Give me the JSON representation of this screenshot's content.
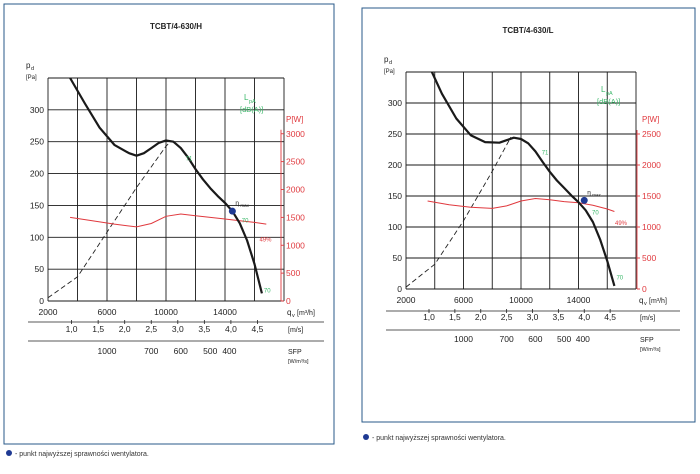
{
  "footnote": "- punkt najwyższej sprawności wentylatora.",
  "colors": {
    "curve": "#1a1a1a",
    "power": "#e0393e",
    "green": "#3db86b",
    "marker": "#1f3a93",
    "grid": "#1a1a1a",
    "frame": "#2a5a88"
  },
  "chart_data": [
    {
      "type": "line",
      "title": "TCBT/4-630/H",
      "ylabel_main": "p",
      "ylabel_sub": "d",
      "ylabel_unit": "[Pa]",
      "ylim": [
        0,
        350
      ],
      "yticks": [
        0,
        50,
        100,
        150,
        200,
        250,
        300
      ],
      "xlim": [
        2000,
        18000
      ],
      "xticks": [
        2000,
        6000,
        10000,
        14000
      ],
      "xlabel_main": "q",
      "xlabel_sub": "v",
      "xlabel_unit": "[m³/h]",
      "y2label": "P[W]",
      "y2lim": [
        0,
        4000
      ],
      "y2ticks": [
        0,
        500,
        1000,
        1500,
        2000,
        2500,
        3000
      ],
      "lpa_label": "L",
      "lpa_sub": "pA",
      "lpa_unit": "[dB(A)]",
      "eta_label": "η",
      "eta_sub": "max",
      "pressure_curve": {
        "x": [
          3500,
          4500,
          5500,
          6500,
          7500,
          8000,
          8500,
          9000,
          9500,
          10000,
          10500,
          11000,
          11500,
          12000,
          12500,
          13000,
          13500,
          14000,
          14500,
          15000,
          15500,
          16000,
          16500
        ],
        "y": [
          350,
          310,
          272,
          245,
          232,
          228,
          232,
          240,
          248,
          252,
          250,
          240,
          225,
          207,
          191,
          177,
          165,
          154,
          141,
          122,
          95,
          58,
          12
        ]
      },
      "power_curve": {
        "x": [
          3500,
          5000,
          6500,
          8000,
          9000,
          10000,
          11000,
          12000,
          13000,
          14000,
          15000,
          16000,
          16800
        ],
        "y": [
          1500,
          1440,
          1380,
          1330,
          1390,
          1520,
          1560,
          1530,
          1500,
          1470,
          1440,
          1410,
          1380
        ]
      },
      "system_curve": {
        "x": [
          2000,
          4000,
          6000,
          8000,
          10000,
          10300
        ],
        "y": [
          5,
          38,
          108,
          178,
          243,
          250
        ]
      },
      "markers": [
        {
          "label": "71",
          "x": 11200,
          "y": 225,
          "series": "LpA"
        },
        {
          "label": "70",
          "x": 15000,
          "y": 128,
          "series": "LpA"
        },
        {
          "label": "70",
          "x": 16500,
          "y": 18,
          "series": "LpA"
        },
        {
          "label": "49%",
          "x": 16200,
          "y": 98,
          "series": "efficiency"
        }
      ],
      "max_efficiency_point": {
        "x": 14500,
        "y": 141
      },
      "axis_velocity": {
        "unit": "[m/s]",
        "ticks": [
          "1,0",
          "1,5",
          "2,0",
          "2,5",
          "3,0",
          "3,5",
          "4,0",
          "4,5"
        ],
        "x": [
          3600,
          5400,
          7200,
          9000,
          10800,
          12600,
          14400,
          16200
        ]
      },
      "axis_sfp": {
        "label": "SFP",
        "unit": "[W/m³/s]",
        "ticks": [
          "1000",
          "700",
          "600",
          "500",
          "400"
        ],
        "x": [
          6000,
          9000,
          11000,
          13000,
          14300
        ]
      }
    },
    {
      "type": "line",
      "title": "TCBT/4-630/L",
      "ylabel_main": "p",
      "ylabel_sub": "d",
      "ylabel_unit": "[Pa]",
      "ylim": [
        0,
        350
      ],
      "yticks": [
        0,
        50,
        100,
        150,
        200,
        250,
        300
      ],
      "xlim": [
        2000,
        18000
      ],
      "xticks": [
        2000,
        6000,
        10000,
        14000
      ],
      "xlabel_main": "q",
      "xlabel_sub": "v",
      "xlabel_unit": "[m³/h]",
      "y2label": "P[W]",
      "y2lim": [
        0,
        3500
      ],
      "y2ticks": [
        0,
        500,
        1000,
        1500,
        2000,
        2500
      ],
      "lpa_label": "L",
      "lpa_sub": "pA",
      "lpa_unit": "[dB(A)]",
      "eta_label": "η",
      "eta_sub": "max",
      "pressure_curve": {
        "x": [
          3800,
          4500,
          5500,
          6500,
          7500,
          8500,
          9000,
          9500,
          10000,
          10500,
          11000,
          11500,
          12000,
          12500,
          13000,
          13500,
          14000,
          14500,
          15000,
          15500,
          16000,
          16500
        ],
        "y": [
          350,
          315,
          275,
          248,
          237,
          236,
          240,
          244,
          242,
          235,
          222,
          205,
          189,
          175,
          163,
          151,
          140,
          127,
          108,
          80,
          45,
          5
        ]
      },
      "power_curve": {
        "x": [
          3500,
          5000,
          6500,
          8000,
          9000,
          10000,
          11000,
          12000,
          13000,
          14000,
          15000,
          16000,
          16500
        ],
        "y": [
          1420,
          1360,
          1320,
          1300,
          1340,
          1420,
          1460,
          1440,
          1410,
          1390,
          1350,
          1290,
          1250
        ]
      },
      "system_curve": {
        "x": [
          2000,
          4000,
          6000,
          8000,
          9300
        ],
        "y": [
          3,
          40,
          110,
          190,
          245
        ]
      },
      "markers": [
        {
          "label": "71",
          "x": 11300,
          "y": 222,
          "series": "LpA"
        },
        {
          "label": "70",
          "x": 14800,
          "y": 125,
          "series": "LpA"
        },
        {
          "label": "70",
          "x": 16500,
          "y": 20,
          "series": "LpA"
        },
        {
          "label": "49%",
          "x": 16400,
          "y": 108,
          "series": "efficiency"
        }
      ],
      "max_efficiency_point": {
        "x": 14400,
        "y": 143
      },
      "axis_velocity": {
        "unit": "[m/s]",
        "ticks": [
          "1,0",
          "1,5",
          "2,0",
          "2,5",
          "3,0",
          "3,5",
          "4,0",
          "4,5"
        ],
        "x": [
          3600,
          5400,
          7200,
          9000,
          10800,
          12600,
          14400,
          16200
        ]
      },
      "axis_sfp": {
        "label": "SFP",
        "unit": "[W/m³/s]",
        "ticks": [
          "1000",
          "700",
          "600",
          "500",
          "400"
        ],
        "x": [
          6000,
          9000,
          11000,
          13000,
          14300
        ]
      }
    }
  ]
}
